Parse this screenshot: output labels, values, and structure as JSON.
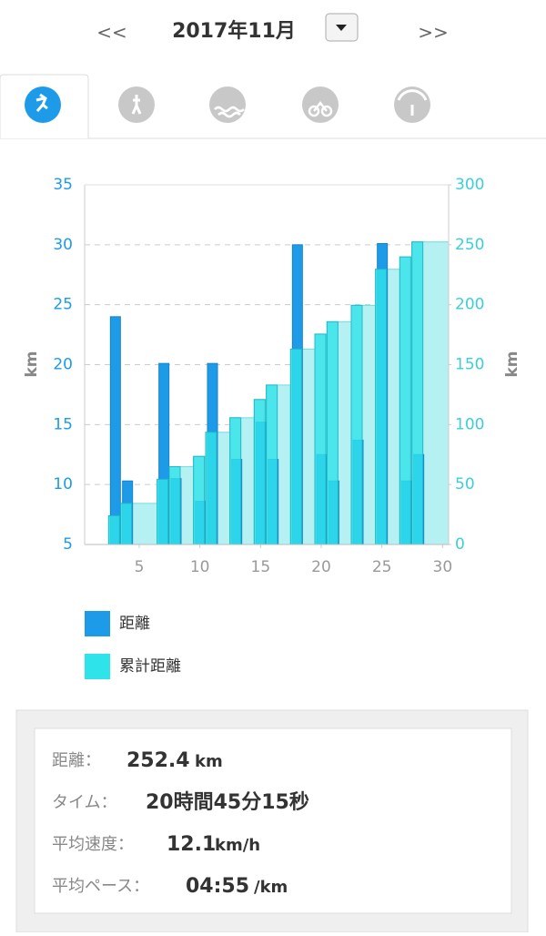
{
  "header": {
    "prev": "<<",
    "title": "2017年11月",
    "next": ">>"
  },
  "chart_data": {
    "type": "bar",
    "x": [
      3,
      4,
      7,
      8,
      10,
      11,
      13,
      15,
      16,
      18,
      20,
      21,
      23,
      25,
      27,
      28
    ],
    "series": [
      {
        "name": "距離",
        "color": "#1e9be8",
        "values": [
          24,
          10.3,
          20.1,
          10.5,
          8.6,
          20.1,
          12.1,
          15.2,
          12.1,
          30,
          12.5,
          10.3,
          13.7,
          30.1,
          10.3,
          12.5
        ]
      },
      {
        "name": "累計距離",
        "color": "#2fe3ea",
        "axis": "y2",
        "values": [
          24,
          34.3,
          54.4,
          64.9,
          73.5,
          93.6,
          105.7,
          120.9,
          133.0,
          163.0,
          175.5,
          185.8,
          199.5,
          229.6,
          239.9,
          252.4
        ]
      }
    ],
    "xlim": [
      0.5,
      30.5
    ],
    "xticks": [
      5,
      10,
      15,
      20,
      25,
      30
    ],
    "ylim": [
      5,
      35
    ],
    "yticks": [
      5,
      10,
      15,
      20,
      25,
      30,
      35
    ],
    "y2lim": [
      0,
      300
    ],
    "y2ticks": [
      0,
      50,
      100,
      150,
      200,
      250,
      300
    ],
    "ylabel": "km",
    "y2label": "km",
    "grid": true
  },
  "summary": {
    "rows": [
      {
        "label": "距離：",
        "value": "252.4",
        "unit": "km"
      },
      {
        "label": "タイム：",
        "value": "20時間45分15秒"
      },
      {
        "label": "平均速度：",
        "value": "12.1",
        "unit": "km/h"
      },
      {
        "label": "平均ペース：",
        "value": "04:55",
        "unit": "/km"
      }
    ]
  }
}
